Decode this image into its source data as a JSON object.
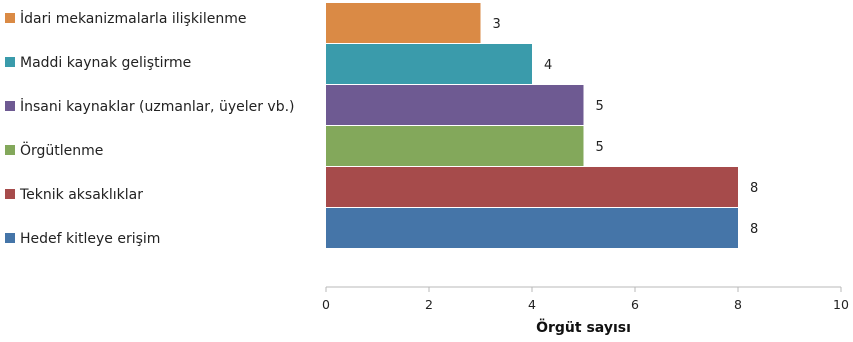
{
  "chart_data": {
    "type": "bar",
    "orientation": "horizontal",
    "xlabel": "Örgüt sayısı",
    "xlim": [
      0,
      10
    ],
    "xticks": [
      0,
      2,
      4,
      6,
      8,
      10
    ],
    "grid": false,
    "legend_placement": "left",
    "categories": [
      "İdari mekanizmalarla ilişkilenme",
      "Maddi kaynak geliştirme",
      "İnsani kaynaklar (uzmanlar, üyeler vb.)",
      "Örgütlenme",
      "Teknik aksaklıklar",
      "Hedef kitleye erişim"
    ],
    "values": [
      3,
      4,
      5,
      5,
      8,
      8
    ],
    "colors": [
      "#DA8A45",
      "#3A9BAB",
      "#6E5A92",
      "#83A85B",
      "#A64B4B",
      "#4575A8"
    ]
  }
}
